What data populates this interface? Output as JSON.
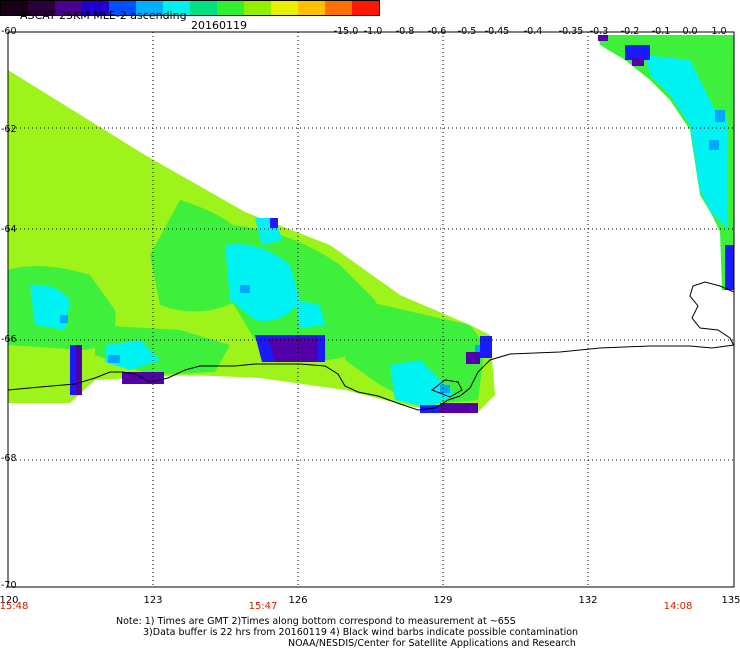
{
  "header": {
    "title": "ASCAT 25KM MLE-2 ascending",
    "date": "20160119"
  },
  "colorbar": {
    "labels": [
      "-15.0",
      "-1.0",
      "-0.8",
      "-0.6",
      "-0.5",
      "-0.45",
      "-0.4",
      "-0.35",
      "-0.3",
      "-0.2",
      "-0.1",
      "0.0",
      "1.0"
    ],
    "colors": [
      "#180018",
      "#2a0038",
      "#4a0090",
      "#2000d0",
      "#0050ff",
      "#00b0ff",
      "#00f0f0",
      "#00e080",
      "#30f030",
      "#90f000",
      "#e8f000",
      "#ffc000",
      "#ff7000",
      "#ff1800"
    ]
  },
  "map": {
    "lat_labels": [
      "-60",
      "-62",
      "-64",
      "-66",
      "-68",
      "-70"
    ],
    "lon_labels": [
      "120",
      "123",
      "126",
      "129",
      "132",
      "135"
    ],
    "time_labels": [
      "15:48",
      "15:47",
      "14:08"
    ],
    "colors": {
      "lime": "#9ef31a",
      "green": "#3ef03c",
      "cyan": "#00f2f2",
      "lightblue": "#00a8ff",
      "blue": "#1a1aff",
      "purple": "#5200a8",
      "coast": "#000000",
      "grid": "#000000"
    }
  },
  "notes": [
    "Note: 1) Times are GMT 2)Times along bottom correspond to measurement at ~65S",
    "3)Data buffer is 22 hrs from 20160119 4) Black wind barbs indicate possible contamination",
    "NOAA/NESDIS/Center for Satellite Applications and Research"
  ]
}
